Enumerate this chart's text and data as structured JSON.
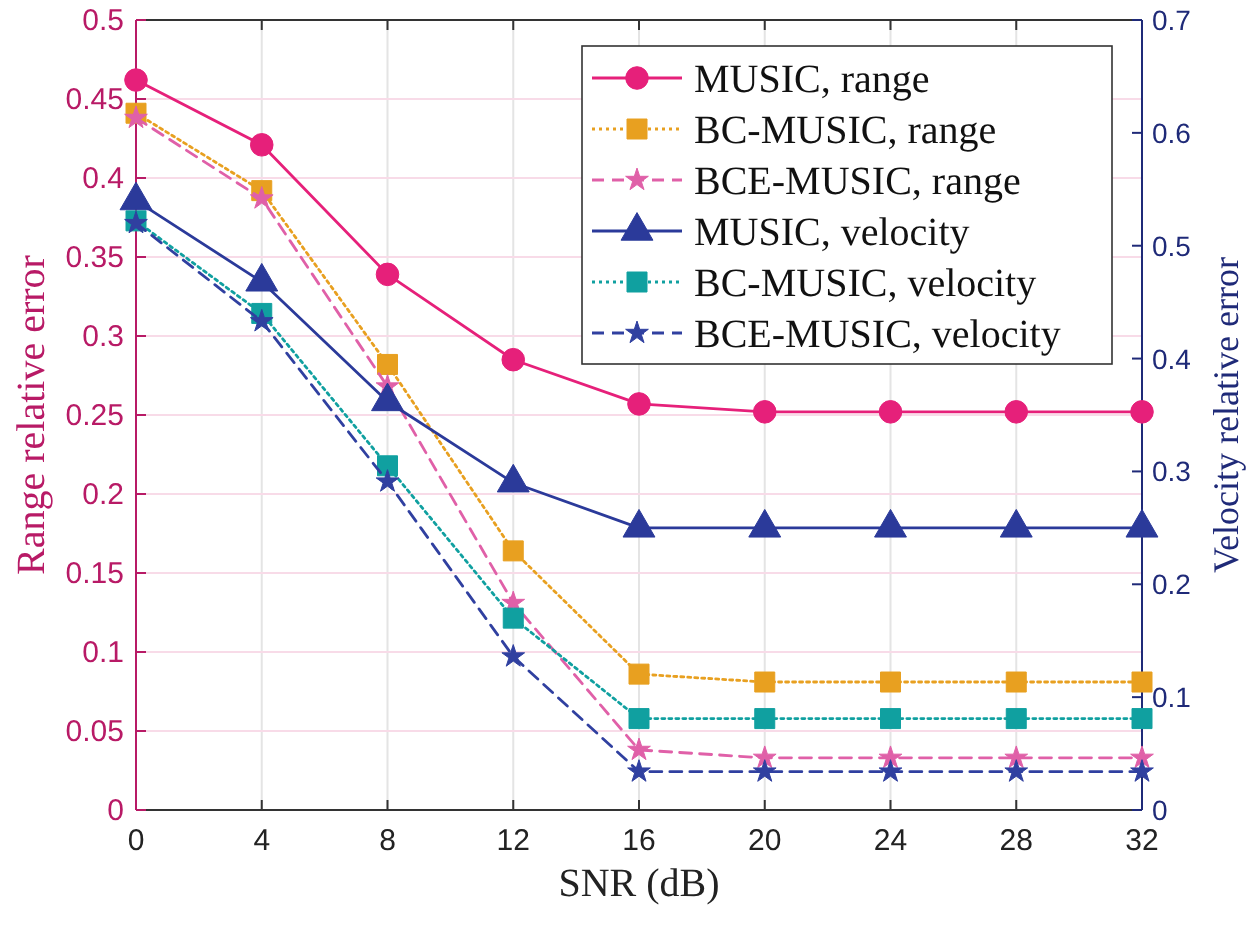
{
  "chart_data": {
    "type": "line",
    "xlabel": "SNR (dB)",
    "ylabel": "Range relative error",
    "y2label": "Velocity relative error",
    "x": [
      0,
      4,
      8,
      12,
      16,
      20,
      24,
      28,
      32
    ],
    "xlim": [
      0,
      32
    ],
    "xticks": [
      0,
      4,
      8,
      12,
      16,
      20,
      24,
      28,
      32
    ],
    "ylim": [
      0,
      0.5
    ],
    "yticks": [
      0,
      0.05,
      0.1,
      0.15,
      0.2,
      0.25,
      0.3,
      0.35,
      0.4,
      0.45,
      0.5
    ],
    "y2lim": [
      0,
      0.7
    ],
    "y2ticks": [
      0,
      0.1,
      0.2,
      0.3,
      0.4,
      0.5,
      0.6,
      0.7
    ],
    "grid": true,
    "legend": "top right",
    "series": [
      {
        "name": "MUSIC, range",
        "color": "#e6207a",
        "marker": "circle",
        "line_style": "solid",
        "values": [
          0.462,
          0.421,
          0.339,
          0.285,
          0.257,
          0.252,
          0.252,
          0.252,
          0.252
        ]
      },
      {
        "name": "BC-MUSIC, range",
        "color": "#e8a020",
        "marker": "square",
        "line_style": "dotted",
        "values": [
          0.441,
          0.392,
          0.282,
          0.164,
          0.086,
          0.081,
          0.081,
          0.081,
          0.081
        ]
      },
      {
        "name": "BCE-MUSIC, range",
        "color": "#e060a8",
        "marker": "star",
        "line_style": "dashed",
        "values": [
          0.438,
          0.387,
          0.268,
          0.131,
          0.038,
          0.033,
          0.033,
          0.033,
          0.033
        ]
      },
      {
        "name": "MUSIC, velocity",
        "color": "#2b3a9a",
        "marker": "triangle",
        "line_style": "solid",
        "axis": "y2",
        "values": [
          0.54,
          0.468,
          0.362,
          0.29,
          0.25,
          0.25,
          0.25,
          0.25,
          0.25
        ]
      },
      {
        "name": "BC-MUSIC, velocity",
        "color": "#10a0a0",
        "marker": "square",
        "line_style": "dotted",
        "axis": "y2",
        "values": [
          0.522,
          0.44,
          0.305,
          0.17,
          0.081,
          0.081,
          0.081,
          0.081,
          0.081
        ]
      },
      {
        "name": "BCE-MUSIC, velocity",
        "color": "#3040a0",
        "marker": "star",
        "line_style": "dashed",
        "axis": "y2",
        "values": [
          0.52,
          0.433,
          0.291,
          0.136,
          0.034,
          0.034,
          0.034,
          0.034,
          0.034
        ]
      }
    ]
  }
}
